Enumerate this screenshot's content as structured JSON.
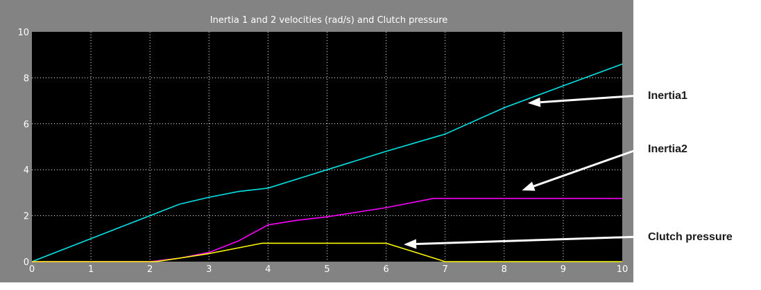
{
  "chart_data": {
    "type": "line",
    "title": "Inertia 1 and 2 velocities (rad/s) and Clutch pressure",
    "xlabel": "",
    "ylabel": "",
    "xlim": [
      0,
      10
    ],
    "ylim": [
      0,
      10
    ],
    "x_ticks": [
      "0",
      "1",
      "2",
      "3",
      "4",
      "5",
      "6",
      "7",
      "8",
      "9",
      "10"
    ],
    "y_ticks": [
      "0",
      "2",
      "4",
      "6",
      "8",
      "10"
    ],
    "grid": true,
    "background": "#000000",
    "frame_color": "#838383",
    "series": [
      {
        "id": "inertia1",
        "color": "#00e5e5",
        "x": [
          0,
          1,
          2,
          2.5,
          3,
          3.5,
          4,
          5,
          6,
          7,
          8,
          9,
          10
        ],
        "y": [
          0,
          1.0,
          2.0,
          2.5,
          2.8,
          3.05,
          3.2,
          4.0,
          4.8,
          5.55,
          6.7,
          7.65,
          8.6
        ]
      },
      {
        "id": "inertia2",
        "color": "#ff00ff",
        "x": [
          0,
          2,
          2.5,
          3,
          3.5,
          4,
          4.5,
          5,
          6,
          6.8,
          7,
          10
        ],
        "y": [
          0,
          0,
          0.15,
          0.4,
          0.9,
          1.6,
          1.8,
          1.95,
          2.35,
          2.75,
          2.75,
          2.75
        ]
      },
      {
        "id": "clutch",
        "color": "#ffff00",
        "x": [
          0,
          2.1,
          2.5,
          3,
          3.5,
          3.9,
          6,
          7,
          10
        ],
        "y": [
          0,
          0,
          0.15,
          0.35,
          0.6,
          0.8,
          0.8,
          0,
          0
        ]
      }
    ]
  },
  "annotations": [
    {
      "label": "Inertia1",
      "series": "inertia1",
      "point": [
        8.4,
        6.9
      ]
    },
    {
      "label": "Inertia2",
      "series": "inertia2",
      "point": [
        8.3,
        3.1
      ]
    },
    {
      "label": "Clutch pressure",
      "series": "clutch",
      "point": [
        6.3,
        0.75
      ]
    }
  ]
}
